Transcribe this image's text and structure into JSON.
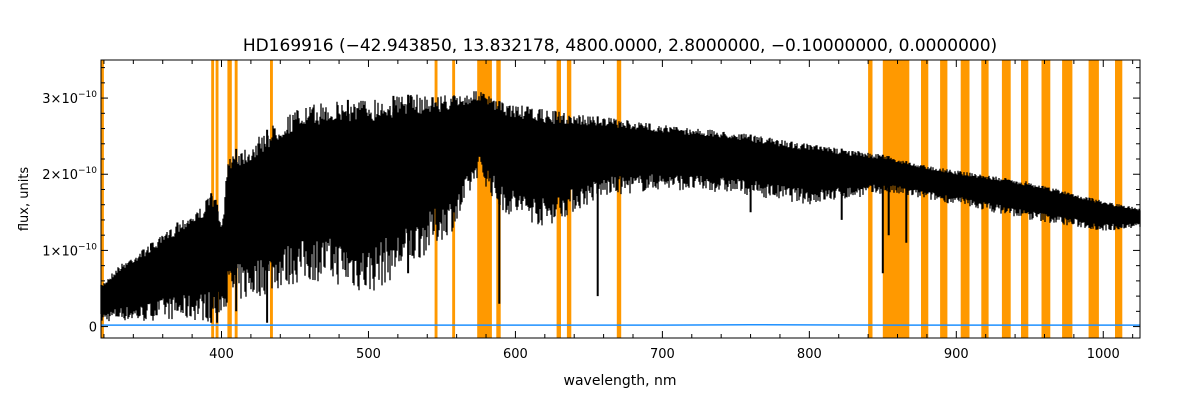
{
  "chart_data": {
    "type": "line",
    "title": "HD169916    (−42.943850, 13.832178, 4800.0000, 2.8000000, −0.10000000, 0.0000000)",
    "xlabel": "wavelength, nm",
    "ylabel": "flux, units",
    "xlim": [
      318,
      1025
    ],
    "ylim": [
      -1.5e-11,
      3.5e-10
    ],
    "x_ticks": [
      400,
      500,
      600,
      700,
      800,
      900,
      1000
    ],
    "x_tick_labels": [
      "400",
      "500",
      "600",
      "700",
      "800",
      "900",
      "1000"
    ],
    "y_ticks": [
      0,
      1e-10,
      2e-10,
      3e-10
    ],
    "y_tick_labels": [
      {
        "base": "0",
        "exp": ""
      },
      {
        "base": "1×10",
        "exp": "−10"
      },
      {
        "base": "2×10",
        "exp": "−10"
      },
      {
        "base": "3×10",
        "exp": "−10"
      }
    ],
    "grid": false,
    "colors": {
      "flux": "#000000",
      "error": "#1e90ff",
      "mask": "#ff9900"
    },
    "series": [
      {
        "key": "flux",
        "upper": [
          [
            318,
            5.5e-11
          ],
          [
            330,
            8e-11
          ],
          [
            345,
            1e-10
          ],
          [
            360,
            1.2e-10
          ],
          [
            375,
            1.45e-10
          ],
          [
            385,
            1.55e-10
          ],
          [
            395,
            1.8e-10
          ],
          [
            400,
            1.3e-10
          ],
          [
            405,
            2.3e-10
          ],
          [
            420,
            2.4e-10
          ],
          [
            435,
            2.65e-10
          ],
          [
            450,
            2.85e-10
          ],
          [
            470,
            2.95e-10
          ],
          [
            500,
            3e-10
          ],
          [
            530,
            3.05e-10
          ],
          [
            560,
            3.05e-10
          ],
          [
            575,
            3.1e-10
          ],
          [
            590,
            2.95e-10
          ],
          [
            620,
            2.85e-10
          ],
          [
            660,
            2.75e-10
          ],
          [
            700,
            2.65e-10
          ],
          [
            750,
            2.55e-10
          ],
          [
            800,
            2.4e-10
          ],
          [
            852,
            2.25e-10
          ],
          [
            870,
            2.15e-10
          ],
          [
            900,
            2.05e-10
          ],
          [
            950,
            1.9e-10
          ],
          [
            1000,
            1.65e-10
          ],
          [
            1025,
            1.55e-10
          ]
        ],
        "lower": [
          [
            318,
            5e-12
          ],
          [
            330,
            8e-12
          ],
          [
            345,
            5e-12
          ],
          [
            360,
            1e-11
          ],
          [
            375,
            7e-12
          ],
          [
            385,
            8e-12
          ],
          [
            395,
            5e-12
          ],
          [
            400,
            2e-11
          ],
          [
            405,
            3e-11
          ],
          [
            420,
            3.5e-11
          ],
          [
            435,
            4.5e-11
          ],
          [
            450,
            5.5e-11
          ],
          [
            470,
            6e-11
          ],
          [
            500,
            4e-11
          ],
          [
            530,
            8e-11
          ],
          [
            560,
            1.3e-10
          ],
          [
            575,
            2e-10
          ],
          [
            590,
            1.5e-10
          ],
          [
            620,
            1.3e-10
          ],
          [
            660,
            1.7e-10
          ],
          [
            700,
            1.8e-10
          ],
          [
            750,
            1.75e-10
          ],
          [
            800,
            1.6e-10
          ],
          [
            852,
            1.75e-10
          ],
          [
            870,
            1.7e-10
          ],
          [
            900,
            1.6e-10
          ],
          [
            950,
            1.4e-10
          ],
          [
            1000,
            1.25e-10
          ],
          [
            1025,
            1.3e-10
          ]
        ],
        "dips": [
          [
            352,
            1e-10
          ],
          [
            370,
            9e-11
          ],
          [
            393,
            5e-12
          ],
          [
            397,
            5e-12
          ],
          [
            410,
            2e-11
          ],
          [
            431,
            5e-12
          ],
          [
            486,
            9e-11
          ],
          [
            517,
            1e-10
          ],
          [
            527,
            7e-11
          ],
          [
            589,
            3e-11
          ],
          [
            656,
            4e-11
          ],
          [
            760,
            1.5e-10
          ],
          [
            822,
            1.4e-10
          ],
          [
            850,
            7e-11
          ],
          [
            854,
            1.2e-10
          ],
          [
            866,
            1.1e-10
          ]
        ]
      }
    ],
    "error_points": [
      [
        318,
        2e-12
      ],
      [
        400,
        2e-12
      ],
      [
        500,
        2e-12
      ],
      [
        600,
        2e-12
      ],
      [
        700,
        2e-12
      ],
      [
        760,
        2.5e-12
      ],
      [
        852,
        2e-12
      ],
      [
        900,
        2e-12
      ],
      [
        1000,
        2e-12
      ],
      [
        1025,
        2e-12
      ]
    ],
    "mask_bands": [
      [
        318,
        320
      ],
      [
        393,
        395
      ],
      [
        396,
        398
      ],
      [
        404,
        407
      ],
      [
        409,
        411
      ],
      [
        433,
        435
      ],
      [
        545,
        547
      ],
      [
        557,
        559
      ],
      [
        574,
        584
      ],
      [
        587,
        590
      ],
      [
        628,
        631
      ],
      [
        635,
        638
      ],
      [
        669,
        672
      ],
      [
        840,
        843
      ],
      [
        850,
        868
      ],
      [
        876,
        881
      ],
      [
        889,
        894
      ],
      [
        903,
        909
      ],
      [
        917,
        922
      ],
      [
        931,
        937
      ],
      [
        944,
        949
      ],
      [
        958,
        964
      ],
      [
        972,
        979
      ],
      [
        990,
        997
      ],
      [
        1008,
        1013
      ]
    ]
  }
}
